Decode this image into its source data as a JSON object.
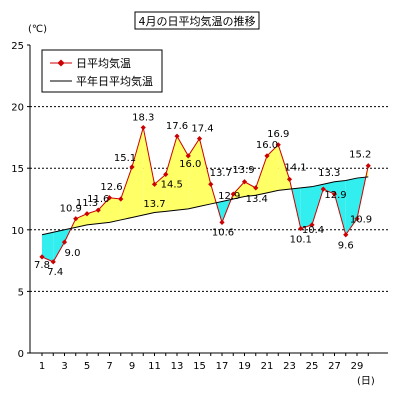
{
  "chart_data": {
    "type": "line",
    "title": "4月の日平均気温の推移",
    "ylabel": "(℃)",
    "xlabel": "(日)",
    "ylim": [
      0,
      25
    ],
    "yticks": [
      0,
      5,
      10,
      15,
      20,
      25
    ],
    "xlim": [
      1,
      30
    ],
    "xticks": [
      1,
      3,
      5,
      7,
      9,
      11,
      13,
      15,
      17,
      19,
      21,
      23,
      25,
      27,
      29
    ],
    "grid": "horizontal dashed",
    "legend_position": "top-left",
    "x": [
      1,
      2,
      3,
      4,
      5,
      6,
      7,
      8,
      9,
      10,
      11,
      12,
      13,
      14,
      15,
      16,
      17,
      18,
      19,
      20,
      21,
      22,
      23,
      24,
      25,
      26,
      27,
      28,
      29,
      30
    ],
    "series": [
      {
        "name": "日平均気温",
        "color": "#cc0000",
        "marker": "diamond",
        "values": [
          7.8,
          7.4,
          9.0,
          10.9,
          11.3,
          11.6,
          12.6,
          12.5,
          15.1,
          18.3,
          13.7,
          14.5,
          17.6,
          16.0,
          17.4,
          13.7,
          10.6,
          12.9,
          13.9,
          13.4,
          16.0,
          16.9,
          14.1,
          10.1,
          10.4,
          13.3,
          12.9,
          9.6,
          10.9,
          15.2
        ]
      },
      {
        "name": "平年日平均気温",
        "color": "#000000",
        "values": [
          9.6,
          9.8,
          10.0,
          10.2,
          10.4,
          10.5,
          10.6,
          10.8,
          11.0,
          11.2,
          11.4,
          11.5,
          11.6,
          11.7,
          11.9,
          12.1,
          12.3,
          12.5,
          12.7,
          12.8,
          13.0,
          13.2,
          13.3,
          13.4,
          13.5,
          13.7,
          13.9,
          14.0,
          14.2,
          14.3
        ]
      }
    ],
    "fill_above_color": "#ffff66",
    "fill_below_color": "#33eeee",
    "data_labels": [
      {
        "i": 1,
        "text": "7.8",
        "dx": 0,
        "dy": 11
      },
      {
        "i": 2,
        "text": "7.4",
        "dx": 2,
        "dy": 13
      },
      {
        "i": 3,
        "text": "9.0",
        "dx": 8,
        "dy": 14
      },
      {
        "i": 4,
        "text": "10.9",
        "dx": -5,
        "dy": -7
      },
      {
        "i": 5,
        "text": "11.3",
        "dx": 0,
        "dy": -8
      },
      {
        "i": 6,
        "text": "11.6",
        "dx": 0,
        "dy": -8
      },
      {
        "i": 7,
        "text": "12.6",
        "dx": 2,
        "dy": -8
      },
      {
        "i": 9,
        "text": "15.1",
        "dx": -7,
        "dy": -6
      },
      {
        "i": 10,
        "text": "18.3",
        "dx": 0,
        "dy": -7
      },
      {
        "i": 11,
        "text": "13.7",
        "dx": 0,
        "dy": 23
      },
      {
        "i": 12,
        "text": "14.5",
        "dx": 6,
        "dy": 13
      },
      {
        "i": 13,
        "text": "17.6",
        "dx": 0,
        "dy": -7
      },
      {
        "i": 14,
        "text": "16.0",
        "dx": 2,
        "dy": 11
      },
      {
        "i": 15,
        "text": "17.4",
        "dx": 3,
        "dy": -7
      },
      {
        "i": 16,
        "text": "13.7",
        "dx": 10,
        "dy": -8
      },
      {
        "i": 17,
        "text": "10.6",
        "dx": 1,
        "dy": 13
      },
      {
        "i": 18,
        "text": "12.9",
        "dx": -4,
        "dy": 5
      },
      {
        "i": 19,
        "text": "13.9",
        "dx": -1,
        "dy": -9
      },
      {
        "i": 20,
        "text": "13.4",
        "dx": 1,
        "dy": 14
      },
      {
        "i": 21,
        "text": "16.0",
        "dx": 0,
        "dy": -8
      },
      {
        "i": 22,
        "text": "16.9",
        "dx": 0,
        "dy": -8
      },
      {
        "i": 23,
        "text": "14.1",
        "dx": 6,
        "dy": -9
      },
      {
        "i": 24,
        "text": "10.1",
        "dx": 0,
        "dy": 14
      },
      {
        "i": 25,
        "text": "10.4",
        "dx": 1,
        "dy": 8
      },
      {
        "i": 26,
        "text": "13.3",
        "dx": 6,
        "dy": -13
      },
      {
        "i": 27,
        "text": "12.9",
        "dx": 1,
        "dy": 4
      },
      {
        "i": 28,
        "text": "9.6",
        "dx": 0,
        "dy": 14
      },
      {
        "i": 29,
        "text": "10.9",
        "dx": 4,
        "dy": 4
      },
      {
        "i": 30,
        "text": "15.2",
        "dx": -8,
        "dy": -8
      }
    ]
  }
}
